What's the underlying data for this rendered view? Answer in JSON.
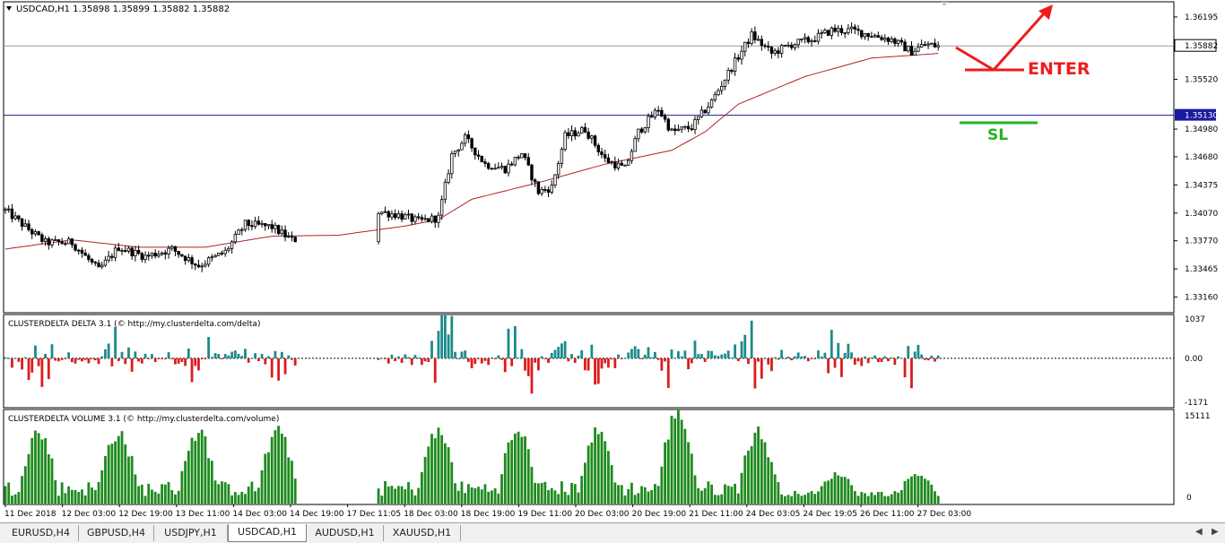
{
  "header": {
    "symbol_line": "USDCAD,H1  1.35898 1.35899 1.35882 1.35882",
    "menu_icon": "triangle-down-icon"
  },
  "tabs": [
    {
      "label": "EURUSD,H4",
      "active": false
    },
    {
      "label": "GBPUSD,H4",
      "active": false
    },
    {
      "label": "USDJPY,H1",
      "active": false
    },
    {
      "label": "USDCAD,H1",
      "active": true
    },
    {
      "label": "AUDUSD,H1",
      "active": false
    },
    {
      "label": "XAUUSD,H1",
      "active": false
    }
  ],
  "tab_nav": {
    "prev_icon": "arrow-left-icon",
    "next_icon": "arrow-right-icon"
  },
  "annotations": {
    "enter_label": "ENTER",
    "sl_label": "SL",
    "enter_color": "#ee1c1c",
    "sl_color": "#22b422"
  },
  "chart_data": [
    {
      "type": "candlestick",
      "title": "USDCAD,H1",
      "ylim": [
        1.33,
        1.3635
      ],
      "y_ticks": [
        "1.36195",
        "1.35882",
        "1.35520",
        "1.35130",
        "1.34980",
        "1.34680",
        "1.34375",
        "1.34070",
        "1.33770",
        "1.33465",
        "1.33160"
      ],
      "y_tick_values": [
        1.36195,
        1.35882,
        1.3552,
        1.3513,
        1.3498,
        1.3468,
        1.34375,
        1.3407,
        1.3377,
        1.33465,
        1.3316
      ],
      "current_price": "1.35882",
      "current_price_value": 1.35882,
      "stop_loss_level": "1.35130",
      "stop_loss_value": 1.3513,
      "x_tick_labels": [
        "11 Dec 2018",
        "12 Dec 03:00",
        "12 Dec 19:00",
        "13 Dec 11:00",
        "14 Dec 03:00",
        "14 Dec 19:00",
        "17 Dec 11:05",
        "18 Dec 03:00",
        "18 Dec 19:00",
        "19 Dec 11:00",
        "20 Dec 03:00",
        "20 Dec 19:00",
        "21 Dec 11:00",
        "24 Dec 03:05",
        "24 Dec 19:05",
        "26 Dec 11:00",
        "27 Dec 03:00"
      ],
      "price_anchors": [
        [
          0,
          1.341
        ],
        [
          6,
          1.3392
        ],
        [
          12,
          1.3375
        ],
        [
          20,
          1.3375
        ],
        [
          28,
          1.3345
        ],
        [
          34,
          1.337
        ],
        [
          42,
          1.336
        ],
        [
          50,
          1.3368
        ],
        [
          58,
          1.335
        ],
        [
          66,
          1.3365
        ],
        [
          72,
          1.3395
        ],
        [
          80,
          1.3392
        ],
        [
          86,
          1.3378
        ],
        [
          95,
          1.3382
        ],
        [
          104,
          1.3388
        ],
        [
          110,
          1.341
        ],
        [
          118,
          1.3405
        ],
        [
          124,
          1.3398
        ],
        [
          130,
          1.3402
        ],
        [
          134,
          1.347
        ],
        [
          138,
          1.3488
        ],
        [
          144,
          1.346
        ],
        [
          150,
          1.3455
        ],
        [
          155,
          1.3472
        ],
        [
          160,
          1.343
        ],
        [
          164,
          1.3435
        ],
        [
          168,
          1.349
        ],
        [
          174,
          1.3498
        ],
        [
          180,
          1.3465
        ],
        [
          186,
          1.3455
        ],
        [
          190,
          1.3495
        ],
        [
          196,
          1.352
        ],
        [
          200,
          1.3495
        ],
        [
          206,
          1.35
        ],
        [
          212,
          1.3528
        ],
        [
          218,
          1.3565
        ],
        [
          224,
          1.36
        ],
        [
          230,
          1.358
        ],
        [
          236,
          1.359
        ],
        [
          242,
          1.3595
        ],
        [
          248,
          1.3605
        ],
        [
          254,
          1.3605
        ],
        [
          260,
          1.36
        ],
        [
          266,
          1.3595
        ],
        [
          272,
          1.3582
        ],
        [
          276,
          1.359
        ],
        [
          280,
          1.3588
        ]
      ],
      "moving_average_anchors": [
        [
          0,
          1.3368
        ],
        [
          20,
          1.3378
        ],
        [
          40,
          1.337
        ],
        [
          60,
          1.337
        ],
        [
          80,
          1.3382
        ],
        [
          100,
          1.3383
        ],
        [
          120,
          1.3393
        ],
        [
          130,
          1.34
        ],
        [
          140,
          1.3422
        ],
        [
          160,
          1.344
        ],
        [
          180,
          1.346
        ],
        [
          200,
          1.3475
        ],
        [
          210,
          1.3495
        ],
        [
          220,
          1.3525
        ],
        [
          240,
          1.3555
        ],
        [
          260,
          1.3575
        ],
        [
          280,
          1.358
        ]
      ],
      "moving_average_color": "#b22222",
      "candle_color": "#000000",
      "gap_bars": [
        88,
        112
      ]
    },
    {
      "type": "bar",
      "title": "CLUSTERDELTA DELTA 3.1 (© http://my.clusterdelta.com/delta)",
      "ylim": [
        -1171,
        1037
      ],
      "y_ticks": [
        "1037",
        "0.00",
        "-1171"
      ],
      "positive_color": "#1e8a8a",
      "negative_color": "#dd1c1c",
      "gap_bars": [
        88,
        112
      ]
    },
    {
      "type": "bar",
      "title": "CLUSTERDELTA VOLUME 3.1 (© http://my.clusterdelta.com/volume)",
      "ylim": [
        0,
        15111
      ],
      "y_ticks": [
        "15111",
        "0"
      ],
      "bar_color": "#1e8a1e",
      "gap_bars": [
        88,
        112
      ]
    }
  ]
}
